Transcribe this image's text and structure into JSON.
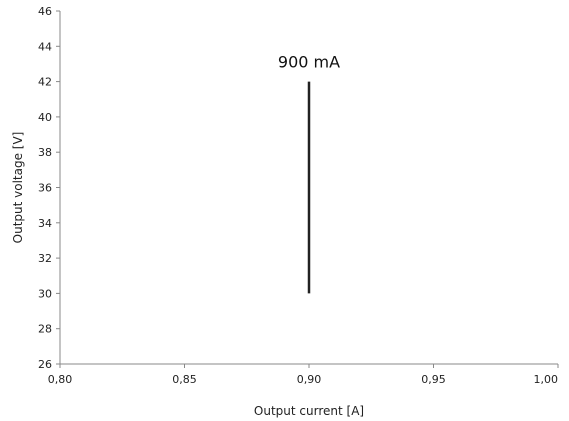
{
  "chart_data": {
    "type": "line",
    "title": "",
    "xlabel": "Output current [A]",
    "ylabel": "Output voltage [V]",
    "xlim": [
      0.8,
      1.0
    ],
    "ylim": [
      26,
      46
    ],
    "x_ticks": [
      0.8,
      0.85,
      0.9,
      0.95,
      1.0
    ],
    "x_tick_labels": [
      "0,80",
      "0,85",
      "0,90",
      "0,95",
      "1,00"
    ],
    "y_ticks": [
      26,
      28,
      30,
      32,
      34,
      36,
      38,
      40,
      42,
      44,
      46
    ],
    "y_tick_labels": [
      "26",
      "28",
      "30",
      "32",
      "34",
      "36",
      "38",
      "40",
      "42",
      "44",
      "46"
    ],
    "grid": false,
    "legend": "none",
    "series": [
      {
        "x": [
          0.9,
          0.9
        ],
        "y": [
          30,
          42
        ],
        "color": "#222222"
      }
    ],
    "annotations": [
      {
        "text": "900 mA",
        "x": 0.9,
        "y": 42
      }
    ]
  }
}
